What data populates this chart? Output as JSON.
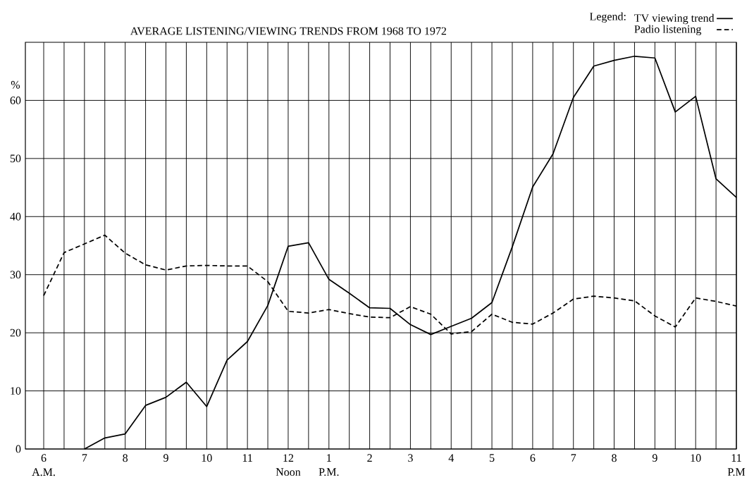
{
  "chart_data": {
    "type": "line",
    "title": "AVERAGE LISTENING/VIEWING TRENDS FROM 1968 TO 1972",
    "ylabel": "%",
    "legend_title": "Legend:",
    "categories": [
      "6",
      null,
      "7",
      null,
      "8",
      null,
      "9",
      null,
      "10",
      null,
      "11",
      null,
      "12",
      null,
      "1",
      null,
      "2",
      null,
      "3",
      null,
      "4",
      null,
      "5",
      null,
      "6",
      null,
      "7",
      null,
      "8",
      null,
      "9",
      null,
      "10",
      null,
      "11"
    ],
    "series": [
      {
        "name": "TV viewing trend",
        "color": "#000000",
        "line_style": "solid",
        "values": [
          null,
          null,
          0,
          1.9,
          2.6,
          7.5,
          8.9,
          11.5,
          7.3,
          15.3,
          18.5,
          24.7,
          34.9,
          35.5,
          29.2,
          26.8,
          24.3,
          24.2,
          21.4,
          19.7,
          21.1,
          22.5,
          25.2,
          34.8,
          45.1,
          50.8,
          60.5,
          65.9,
          66.9,
          67.6,
          67.3,
          58.0,
          60.7,
          46.5,
          43.3
        ]
      },
      {
        "name": "Padio listening",
        "color": "#000000",
        "line_style": "dashed",
        "values": [
          26.4,
          33.8,
          35.3,
          36.8,
          33.7,
          31.7,
          30.8,
          31.5,
          31.6,
          31.5,
          31.5,
          28.8,
          23.7,
          23.4,
          24.0,
          23.3,
          22.7,
          22.6,
          24.5,
          23.2,
          19.8,
          20.2,
          23.2,
          21.8,
          21.5,
          23.4,
          25.8,
          26.3,
          26.0,
          25.5,
          22.9,
          21.0,
          26.0,
          25.4,
          24.6
        ]
      }
    ],
    "ylim": [
      0,
      70
    ],
    "yticks": [
      0,
      10,
      20,
      30,
      40,
      50,
      60
    ],
    "annotations": [
      "A.M.",
      "Noon",
      "P.M.",
      "P.M"
    ],
    "grid": true,
    "legend": "top right",
    "marker": "none"
  }
}
